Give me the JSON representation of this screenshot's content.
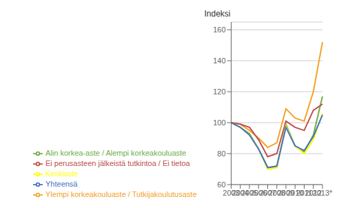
{
  "chart_data": {
    "type": "line",
    "y_label": "Indeksi",
    "categories": [
      "2003",
      "2004",
      "2005",
      "2006",
      "2007",
      "2008",
      "2009",
      "2010",
      "2011",
      "2012",
      "2013*"
    ],
    "series": [
      {
        "name": "Ylempi korkeakouluaste / Tutkijakoulutusaste",
        "color": "#F4A229",
        "values": [
          100,
          99,
          95,
          90,
          84,
          87,
          109,
          103,
          101,
          120,
          152
        ]
      },
      {
        "name": "Alin korkea-aste / Alempi korkeakouluaste",
        "color": "#70AD47",
        "values": [
          100,
          97,
          93,
          83,
          71,
          71,
          99,
          85,
          81,
          92,
          117
        ]
      },
      {
        "name": "Ei perusasteen jälkeistä tutkintoa / Ei tietoa",
        "color": "#C0504D",
        "values": [
          100,
          99,
          97,
          89,
          78,
          80,
          101,
          97,
          95,
          108,
          112
        ]
      },
      {
        "name": "Keskiaste",
        "color": "#FFFF00",
        "values": [
          100,
          97,
          92,
          83,
          70,
          71,
          98,
          85,
          80,
          89,
          106
        ]
      },
      {
        "name": "Yhteensä",
        "color": "#4472C4",
        "values": [
          100,
          97,
          92,
          83,
          71,
          72,
          97,
          85,
          82,
          91,
          105
        ]
      }
    ],
    "ylim": [
      60,
      165
    ],
    "yticks": [
      60,
      80,
      100,
      120,
      140,
      160
    ],
    "grid": true,
    "legend": "bottom"
  }
}
